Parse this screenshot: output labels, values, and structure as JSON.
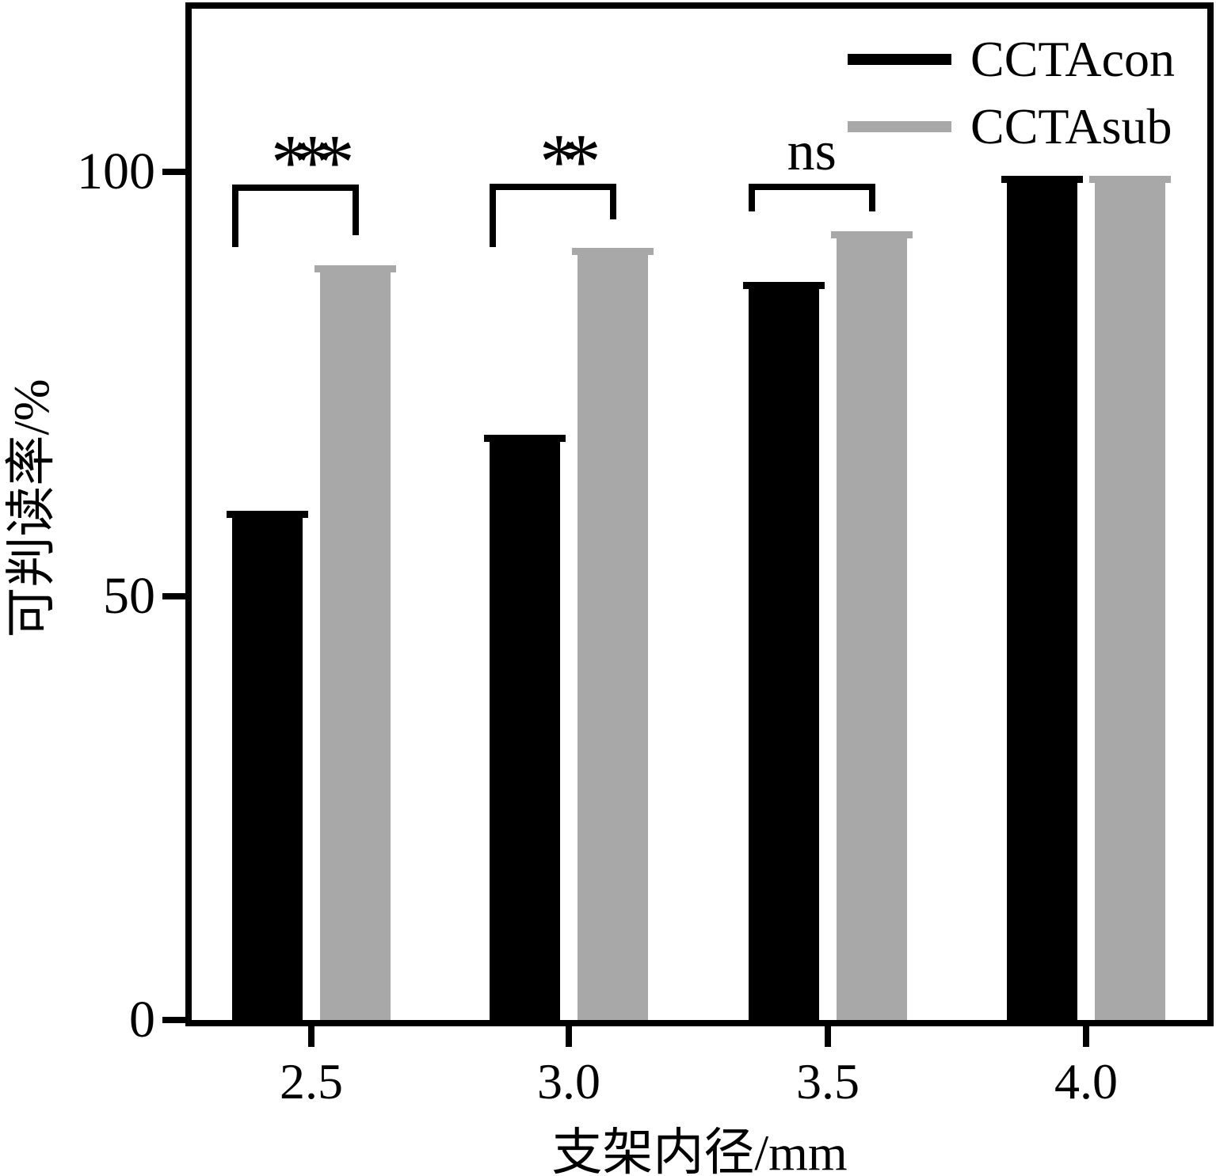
{
  "chart_data": {
    "type": "bar",
    "title": "",
    "xlabel": "支架内径/mm",
    "ylabel": "可判读率/%",
    "categories": [
      "2.5",
      "3.0",
      "3.5",
      "4.0"
    ],
    "series": [
      {
        "name": "CCTAcon",
        "color": "#000000",
        "values": [
          60,
          69,
          87,
          99.5
        ]
      },
      {
        "name": "CCTAsub",
        "color": "#a8a8a8",
        "values": [
          89,
          91,
          93,
          99.5
        ]
      }
    ],
    "significance": [
      "***",
      "**",
      "ns",
      null
    ],
    "yticks": [
      "0",
      "50",
      "100"
    ],
    "ytick_values": [
      0,
      50,
      100
    ],
    "ylim": [
      0,
      119
    ],
    "grid": false,
    "legend_position": "top-right",
    "error_caps": true,
    "axis_color": "#000000",
    "background": "#ffffff"
  }
}
